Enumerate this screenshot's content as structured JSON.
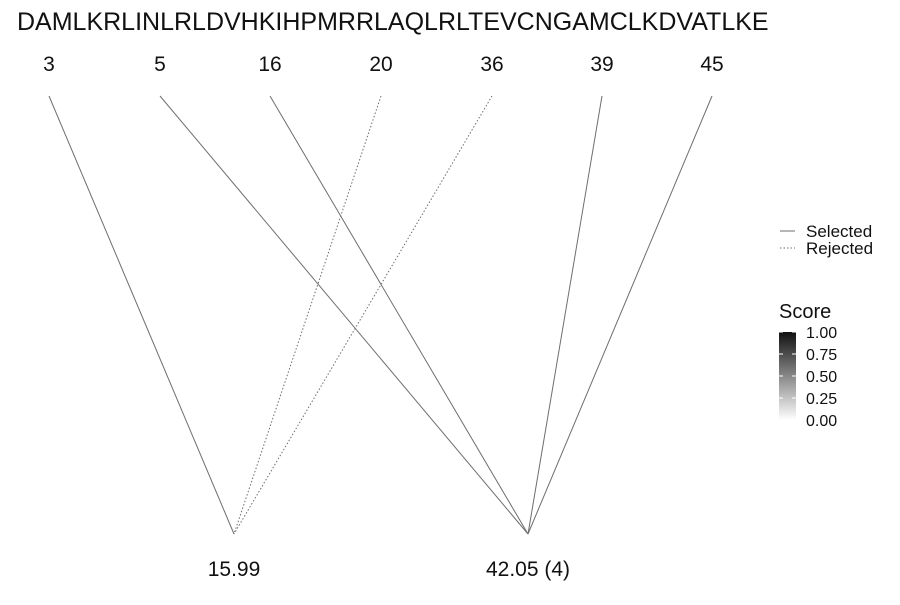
{
  "sequence": "DAMLKRLINLRLDVHKIHPMRRLAQLRLTEVCNGAMCLKDVATLKE",
  "positions": [
    "3",
    "5",
    "16",
    "20",
    "36",
    "39",
    "45"
  ],
  "targets": [
    {
      "label": "15.99"
    },
    {
      "label": "42.05 (4)"
    }
  ],
  "links": [
    {
      "position": "3",
      "target": "15.99",
      "status": "selected"
    },
    {
      "position": "5",
      "target": "42.05 (4)",
      "status": "selected"
    },
    {
      "position": "16",
      "target": "42.05 (4)",
      "status": "selected"
    },
    {
      "position": "20",
      "target": "15.99",
      "status": "rejected"
    },
    {
      "position": "36",
      "target": "15.99",
      "status": "rejected"
    },
    {
      "position": "39",
      "target": "42.05 (4)",
      "status": "selected"
    },
    {
      "position": "45",
      "target": "42.05 (4)",
      "status": "selected"
    }
  ],
  "legend": {
    "selected_label": "Selected",
    "rejected_label": "Rejected"
  },
  "score_scale": {
    "title": "Score",
    "ticks": [
      "1.00",
      "0.75",
      "0.50",
      "0.25",
      "0.00"
    ],
    "color_high": "#111111",
    "color_low": "#ffffff"
  },
  "colors": {
    "line": "#6e6e6e",
    "text": "#111111"
  }
}
